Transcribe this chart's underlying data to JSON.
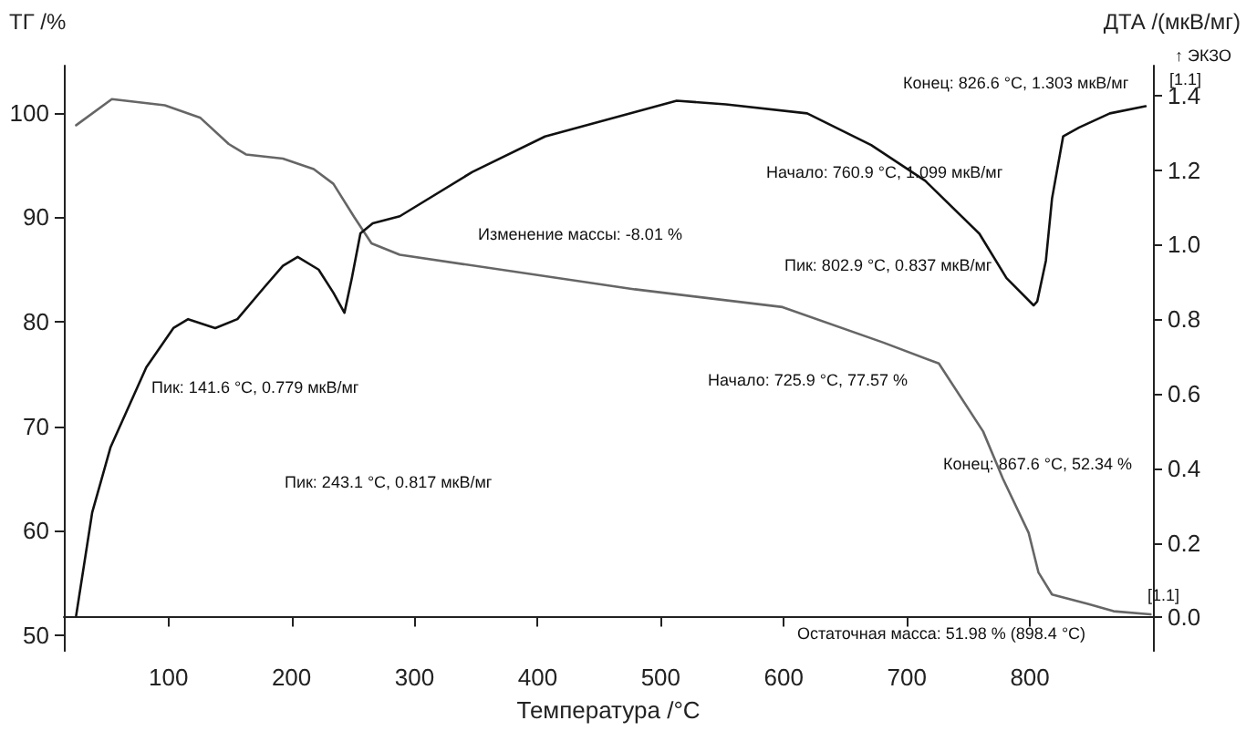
{
  "chart_data": {
    "type": "line",
    "xlabel": "Температура /°C",
    "ylabel": "ТГ /%",
    "y2label": "ДТА /(мкВ/мг)",
    "xlim": [
      15,
      900
    ],
    "xticks": [
      100,
      200,
      300,
      400,
      500,
      600,
      700,
      800
    ],
    "ylim": [
      48.5,
      104.5
    ],
    "yticks": [
      50,
      60,
      70,
      80,
      90,
      100
    ],
    "y2lim": [
      -0.09,
      1.48
    ],
    "y2ticks": [
      {
        "value": 0,
        "label": "0.0"
      },
      {
        "value": 0.2,
        "label": "0.2"
      },
      {
        "value": 0.4,
        "label": "0.4"
      },
      {
        "value": 0.6,
        "label": "0.6"
      },
      {
        "value": 0.8,
        "label": "0.8"
      },
      {
        "value": 1,
        "label": "1.0"
      },
      {
        "value": 1.2,
        "label": "1.2"
      },
      {
        "value": 1.4,
        "label": "1.4"
      }
    ],
    "grid": false,
    "marker": "none",
    "line_style": "solid",
    "series": [
      {
        "color": "#666666",
        "x": [
          25,
          54,
          97,
          126,
          149,
          163,
          193,
          218,
          234,
          251,
          265,
          288,
          479,
          599,
          681,
          726,
          762,
          778,
          799,
          807,
          818,
          847,
          868,
          898
        ],
        "values": [
          98.8,
          101.3,
          100.7,
          99.5,
          97,
          96,
          95.6,
          94.6,
          93.2,
          90,
          87.5,
          86.4,
          83.1,
          81.4,
          78,
          76,
          69.5,
          65,
          59.8,
          56,
          53.9,
          53,
          52.3,
          52
        ]
      },
      {
        "color": "#111111",
        "axis": "y2",
        "x": [
          25,
          38,
          53,
          82,
          104,
          116,
          138,
          156,
          178,
          193,
          205,
          222,
          234,
          243,
          249,
          256,
          266,
          288,
          347,
          406,
          513,
          553,
          619,
          671,
          715,
          759,
          781,
          803,
          806,
          813,
          818,
          827,
          840,
          865,
          894
        ],
        "values": [
          0.005,
          0.281,
          0.457,
          0.671,
          0.776,
          0.8,
          0.776,
          0.8,
          0.886,
          0.943,
          0.967,
          0.933,
          0.871,
          0.817,
          0.91,
          1.03,
          1.057,
          1.076,
          1.195,
          1.29,
          1.386,
          1.376,
          1.352,
          1.267,
          1.171,
          1.029,
          0.91,
          0.837,
          0.848,
          0.957,
          1.124,
          1.29,
          1.314,
          1.352,
          1.371
        ]
      }
    ],
    "annotations": [
      "Конец: 826.6 °C, 1.303 мкВ/мг",
      "Начало: 760.9 °C, 1.099 мкВ/мг",
      "Изменение массы: -8.01 %",
      "Пик: 802.9 °C, 0.837 мкВ/мг",
      "Пик: 141.6 °C, 0.779 мкВ/мг",
      "Начало: 725.9 °C, 77.57 %",
      "Пик: 243.1 °C, 0.817 мкВ/мг",
      "Конец: 867.6 °C, 52.34 %",
      "Остаточная масса: 51.98 % (898.4 °C)",
      "↑ ЭКЗО",
      "[1.1]",
      "[1.1]"
    ]
  }
}
